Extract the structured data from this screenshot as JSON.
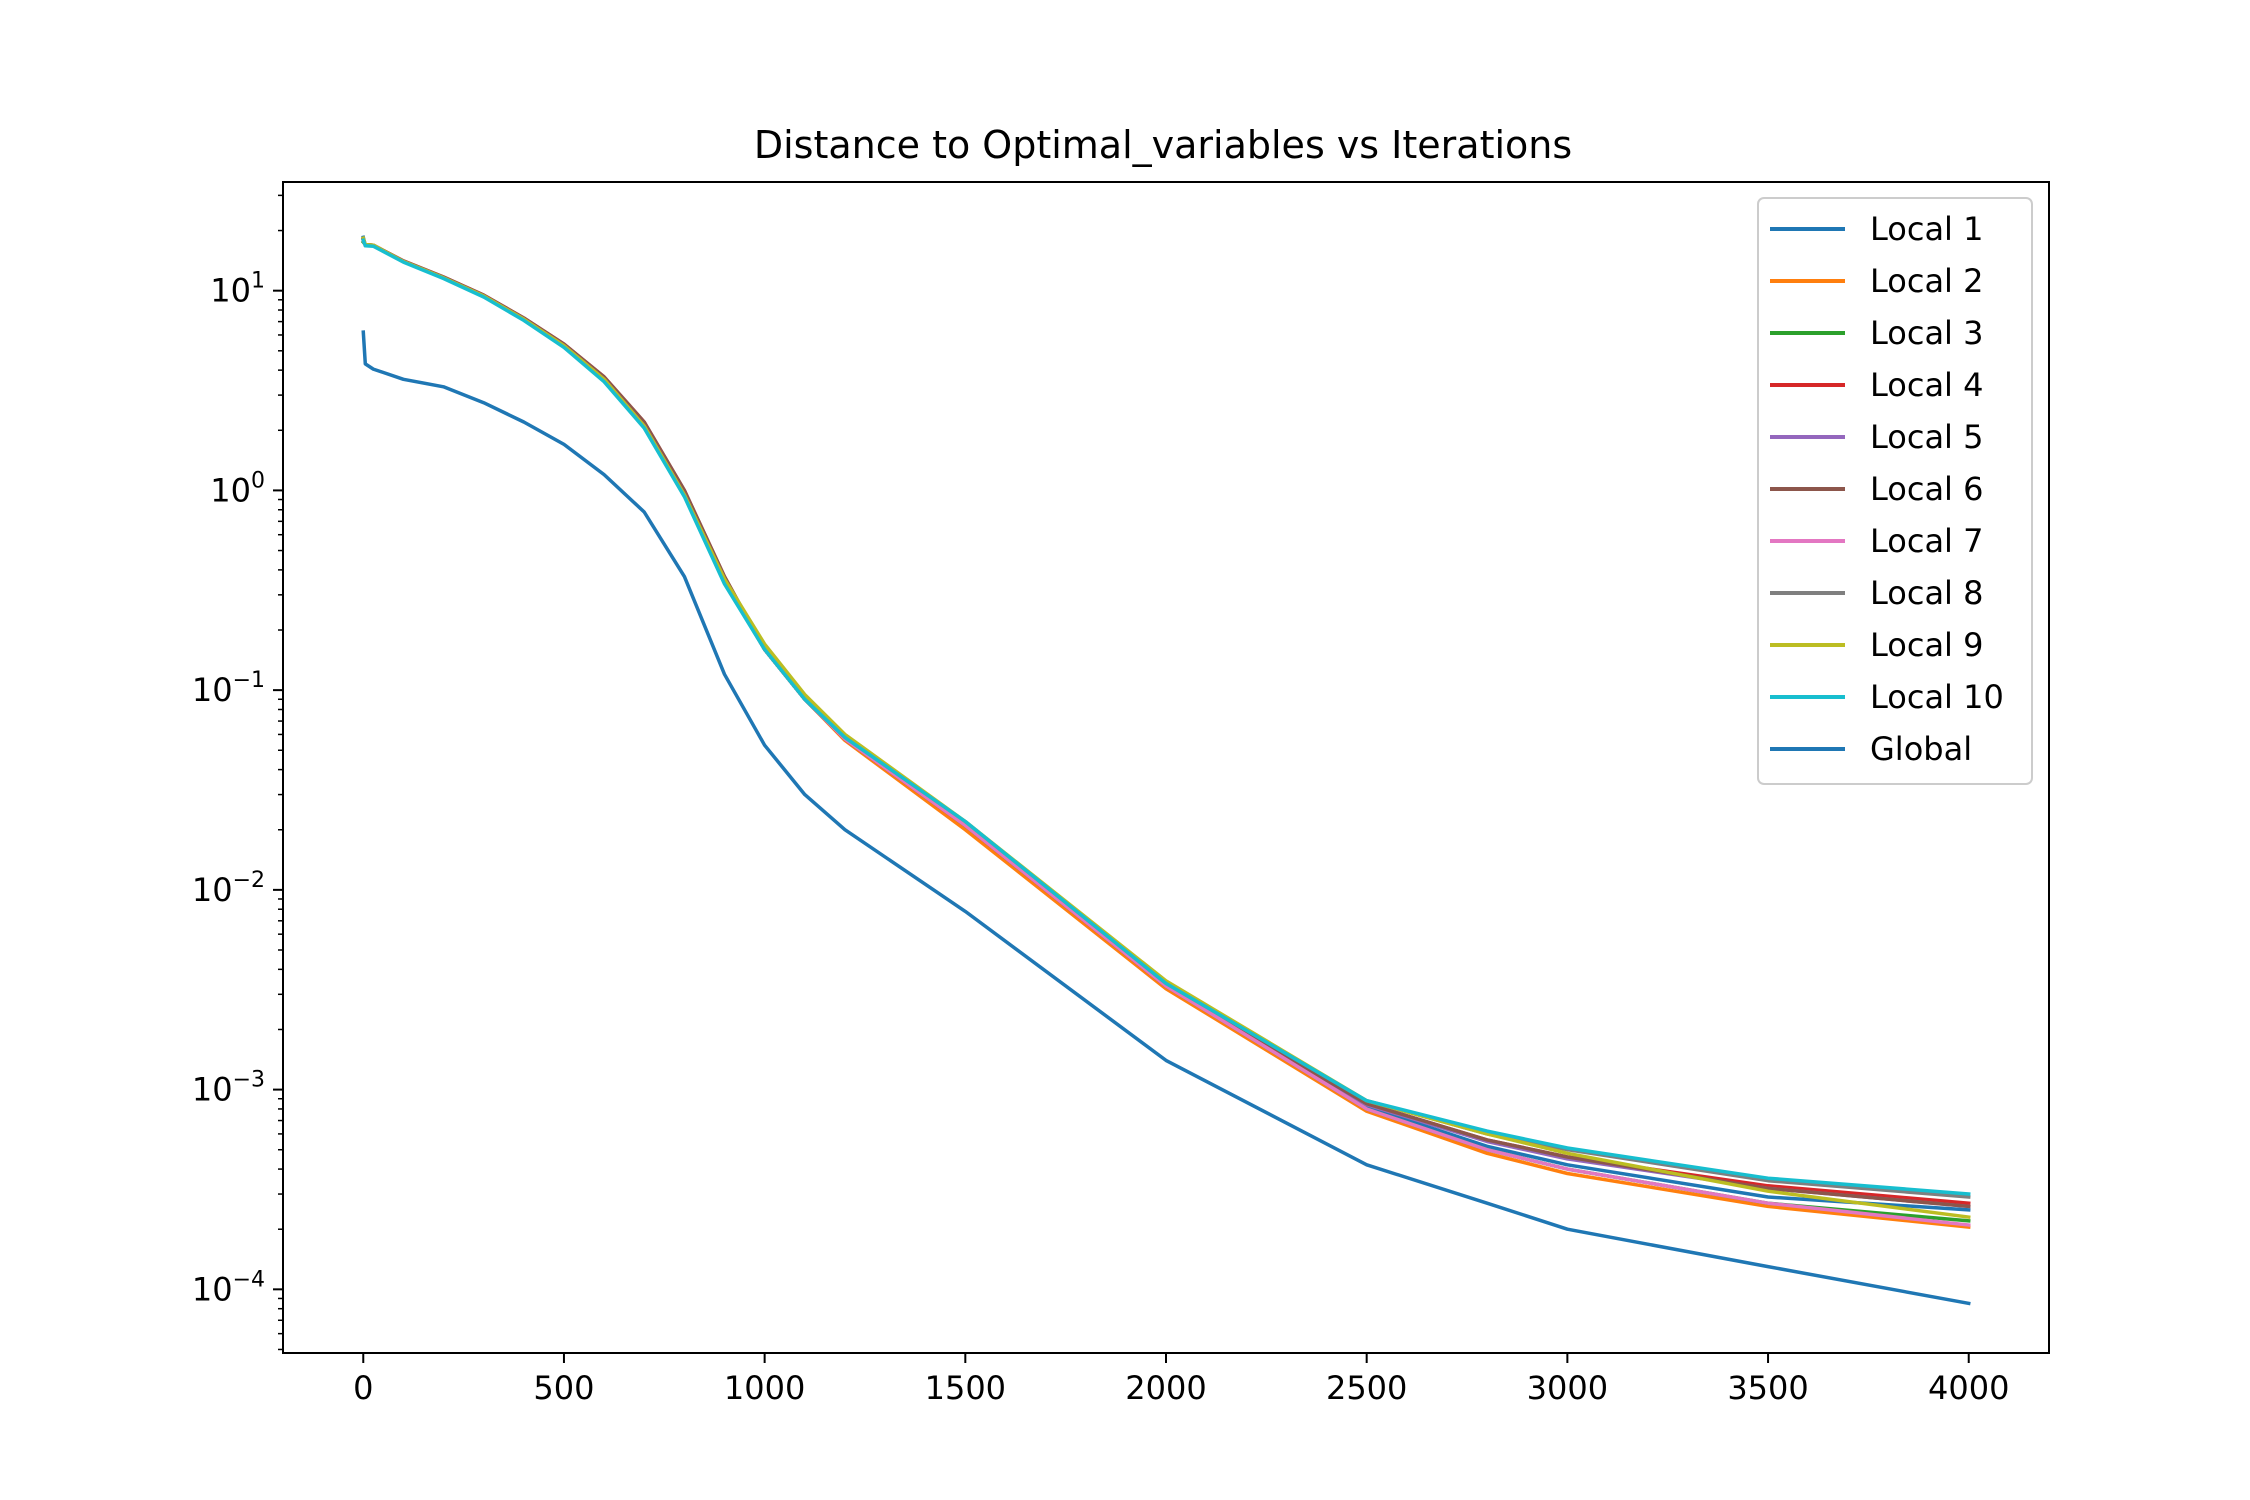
{
  "chart_data": {
    "type": "line",
    "title": "Distance to Optimal_variables vs Iterations",
    "xlabel": "",
    "ylabel": "",
    "xlim": [
      -200,
      4200
    ],
    "ylim": [
      4.8e-05,
      35
    ],
    "yscale": "log",
    "xticks": [
      0,
      500,
      1000,
      1500,
      2000,
      2500,
      3000,
      3500,
      4000
    ],
    "xtick_labels": [
      "0",
      "500",
      "1000",
      "1500",
      "2000",
      "2500",
      "3000",
      "3500",
      "4000"
    ],
    "yticks": [
      {
        "value": 10,
        "base": "10",
        "exp": "1"
      },
      {
        "value": 1,
        "base": "10",
        "exp": "0"
      },
      {
        "value": 0.1,
        "base": "10",
        "exp": "−1"
      },
      {
        "value": 0.01,
        "base": "10",
        "exp": "−2"
      },
      {
        "value": 0.001,
        "base": "10",
        "exp": "−3"
      },
      {
        "value": 0.0001,
        "base": "10",
        "exp": "−4"
      }
    ],
    "grid": false,
    "legend_position": "top-right",
    "x": [
      0,
      5,
      25,
      100,
      200,
      300,
      400,
      500,
      600,
      700,
      800,
      900,
      1000,
      1100,
      1200,
      1500,
      2000,
      2500,
      2800,
      3000,
      3500,
      4000
    ],
    "series": [
      {
        "name": "Local 1",
        "color": "#1f77b4",
        "values": [
          18.5,
          16.8,
          16.8,
          14.0,
          11.6,
          9.4,
          7.2,
          5.3,
          3.6,
          2.1,
          0.95,
          0.35,
          0.16,
          0.09,
          0.057,
          0.021,
          0.0033,
          0.00082,
          0.00052,
          0.00042,
          0.00029,
          0.00025
        ]
      },
      {
        "name": "Local 2",
        "color": "#ff7f0e",
        "values": [
          18.0,
          16.9,
          16.9,
          14.0,
          11.6,
          9.4,
          7.2,
          5.3,
          3.6,
          2.1,
          0.95,
          0.35,
          0.16,
          0.09,
          0.056,
          0.02,
          0.0032,
          0.00078,
          0.00048,
          0.00038,
          0.00026,
          0.000205
        ]
      },
      {
        "name": "Local 3",
        "color": "#2ca02c",
        "values": [
          17.5,
          17.0,
          16.9,
          14.0,
          11.6,
          9.4,
          7.2,
          5.3,
          3.6,
          2.1,
          0.95,
          0.35,
          0.16,
          0.09,
          0.057,
          0.021,
          0.0033,
          0.0008,
          0.0005,
          0.0004,
          0.00027,
          0.00022
        ]
      },
      {
        "name": "Local 4",
        "color": "#d62728",
        "values": [
          18.2,
          17.0,
          16.9,
          14.1,
          11.7,
          9.5,
          7.3,
          5.4,
          3.7,
          2.2,
          1.0,
          0.37,
          0.16,
          0.09,
          0.057,
          0.021,
          0.0033,
          0.00085,
          0.00056,
          0.00046,
          0.00033,
          0.00027
        ]
      },
      {
        "name": "Local 5",
        "color": "#9467bd",
        "values": [
          18.0,
          16.9,
          16.8,
          14.0,
          11.6,
          9.4,
          7.2,
          5.3,
          3.6,
          2.1,
          0.95,
          0.35,
          0.16,
          0.09,
          0.057,
          0.021,
          0.0033,
          0.00084,
          0.00055,
          0.00045,
          0.00032,
          0.00026
        ]
      },
      {
        "name": "Local 6",
        "color": "#8c564b",
        "values": [
          18.1,
          17.0,
          16.9,
          14.1,
          11.7,
          9.5,
          7.3,
          5.4,
          3.7,
          2.2,
          1.0,
          0.37,
          0.16,
          0.09,
          0.057,
          0.021,
          0.0033,
          0.00085,
          0.00056,
          0.00046,
          0.00032,
          0.00026
        ]
      },
      {
        "name": "Local 7",
        "color": "#e377c2",
        "values": [
          17.8,
          16.9,
          16.8,
          14.0,
          11.6,
          9.4,
          7.2,
          5.3,
          3.6,
          2.1,
          0.95,
          0.35,
          0.16,
          0.09,
          0.057,
          0.021,
          0.0033,
          0.0008,
          0.0005,
          0.0004,
          0.00027,
          0.00021
        ]
      },
      {
        "name": "Local 8",
        "color": "#7f7f7f",
        "values": [
          18.0,
          16.9,
          16.8,
          14.0,
          11.6,
          9.4,
          7.2,
          5.3,
          3.6,
          2.1,
          0.95,
          0.35,
          0.16,
          0.09,
          0.058,
          0.022,
          0.0034,
          0.00088,
          0.0006,
          0.0005,
          0.00035,
          0.00029
        ]
      },
      {
        "name": "Local 9",
        "color": "#bcbd22",
        "values": [
          18.3,
          17.0,
          16.9,
          14.0,
          11.6,
          9.4,
          7.2,
          5.3,
          3.6,
          2.1,
          0.95,
          0.36,
          0.17,
          0.095,
          0.06,
          0.022,
          0.0035,
          0.00088,
          0.0006,
          0.00048,
          0.00031,
          0.00023
        ]
      },
      {
        "name": "Local 10",
        "color": "#17becf",
        "values": [
          17.9,
          16.8,
          16.7,
          13.9,
          11.5,
          9.3,
          7.1,
          5.2,
          3.5,
          2.05,
          0.93,
          0.34,
          0.16,
          0.09,
          0.058,
          0.022,
          0.0034,
          0.00088,
          0.00062,
          0.00051,
          0.00036,
          0.0003
        ]
      },
      {
        "name": "Global",
        "color": "#1f77b4",
        "values": [
          6.2,
          4.3,
          4.05,
          3.6,
          3.3,
          2.75,
          2.2,
          1.7,
          1.2,
          0.78,
          0.37,
          0.12,
          0.053,
          0.03,
          0.02,
          0.0078,
          0.0014,
          0.00042,
          0.00027,
          0.0002,
          0.00013,
          8.5e-05
        ]
      }
    ]
  }
}
